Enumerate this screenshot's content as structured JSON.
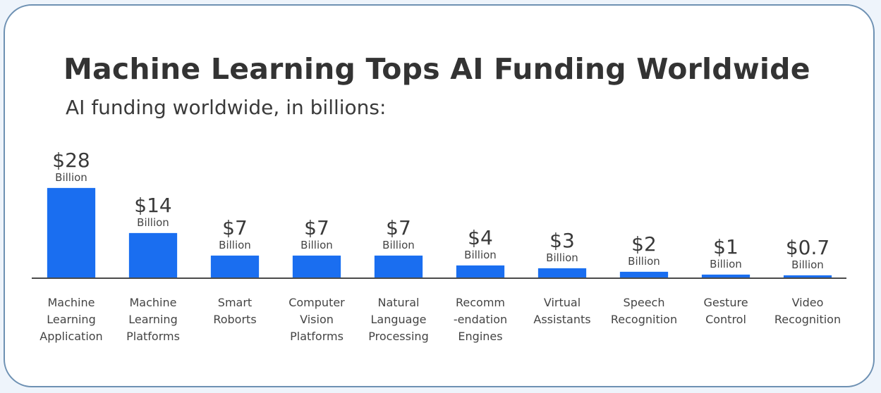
{
  "title": "Machine Learning Tops AI Funding Worldwide",
  "subtitle": "AI funding worldwide, in billions:",
  "colors": {
    "bar": "#1a6ef0",
    "border": "#6e91b3",
    "background": "#eef4fb"
  },
  "bars": [
    {
      "amount": "$28",
      "unit": "Billion",
      "label": "Machine\nLearning\nApplication"
    },
    {
      "amount": "$14",
      "unit": "Billion",
      "label": "Machine\nLearning\nPlatforms"
    },
    {
      "amount": "$7",
      "unit": "Billion",
      "label": "Smart\nRoborts"
    },
    {
      "amount": "$7",
      "unit": "Billion",
      "label": "Computer\nVision\nPlatforms"
    },
    {
      "amount": "$7",
      "unit": "Billion",
      "label": "Natural\nLanguage\nProcessing"
    },
    {
      "amount": "$4",
      "unit": "Billion",
      "label": "Recomm\n-endation\nEngines"
    },
    {
      "amount": "$3",
      "unit": "Billion",
      "label": "Virtual\nAssistants"
    },
    {
      "amount": "$2",
      "unit": "Billion",
      "label": "Speech\nRecognition"
    },
    {
      "amount": "$1",
      "unit": "Billion",
      "label": "Gesture\nControl"
    },
    {
      "amount": "$0.7",
      "unit": "Billion",
      "label": "Video\nRecognition"
    }
  ],
  "chart_data": {
    "type": "bar",
    "title": "Machine Learning Tops AI Funding Worldwide",
    "subtitle": "AI funding worldwide, in billions:",
    "xlabel": "",
    "ylabel": "",
    "categories": [
      "Machine Learning Application",
      "Machine Learning Platforms",
      "Smart Roborts",
      "Computer Vision Platforms",
      "Natural Language Processing",
      "Recomm-endation Engines",
      "Virtual Assistants",
      "Speech Recognition",
      "Gesture Control",
      "Video Recognition"
    ],
    "values": [
      28,
      14,
      7,
      7,
      7,
      4,
      3,
      2,
      1,
      0.7
    ],
    "data_labels": [
      "$28 Billion",
      "$14 Billion",
      "$7 Billion",
      "$7 Billion",
      "$7 Billion",
      "$4 Billion",
      "$3 Billion",
      "$2 Billion",
      "$1 Billion",
      "$0.7 Billion"
    ],
    "units": "billions USD",
    "ylim": [
      0,
      28
    ],
    "grid": false,
    "legend": null,
    "y_axis_visible": false
  }
}
